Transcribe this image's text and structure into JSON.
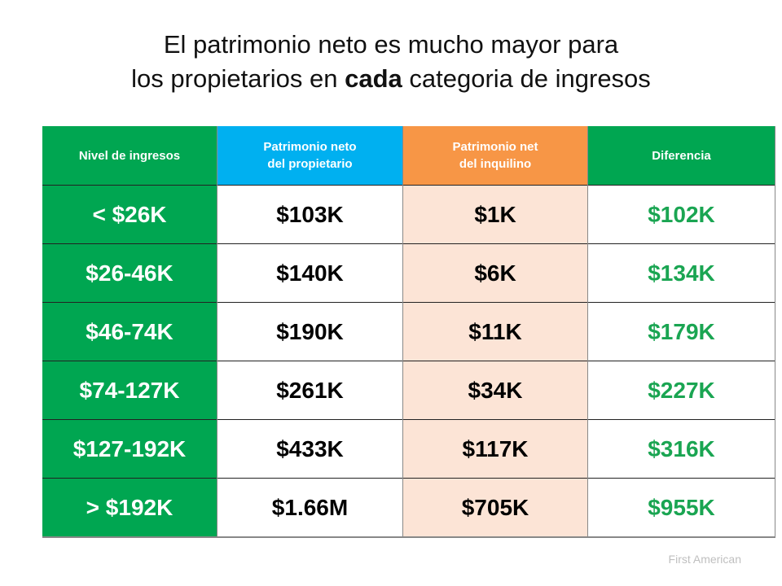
{
  "title": {
    "line1": "El patrimonio neto es mucho mayor para",
    "line2_pre": "los propietarios en ",
    "line2_bold": "cada",
    "line2_post": " categoria de ingresos"
  },
  "table": {
    "headers": [
      "Nivel de ingresos",
      "Patrimonio neto del propietario",
      "Patrimonio net del inquilino",
      "Diferencia"
    ],
    "header_lines": [
      [
        "Nivel de ingresos"
      ],
      [
        "Patrimonio neto",
        "del propietario"
      ],
      [
        "Patrimonio net",
        "del inquilino"
      ],
      [
        "Diferencia"
      ]
    ],
    "rows": [
      [
        "< $26K",
        "$103K",
        "$1K",
        "$102K"
      ],
      [
        "$26-46K",
        "$140K",
        "$6K",
        "$134K"
      ],
      [
        "$46-74K",
        "$190K",
        "$11K",
        "$179K"
      ],
      [
        "$74-127K",
        "$261K",
        "$34K",
        "$227K"
      ],
      [
        "$127-192K",
        "$433K",
        "$117K",
        "$316K"
      ],
      [
        "> $192K",
        "$1.66M",
        "$705K",
        "$955K"
      ]
    ]
  },
  "source": "First American",
  "colors": {
    "green": "#00a651",
    "blue": "#00b0f0",
    "orange": "#f79646",
    "peach": "#fce4d6",
    "difference_text": "#1aa552"
  },
  "chart_data": {
    "type": "table",
    "title": "El patrimonio neto es mucho mayor para los propietarios en cada categoria de ingresos",
    "columns": [
      "Nivel de ingresos",
      "Patrimonio neto del propietario",
      "Patrimonio net del inquilino",
      "Diferencia"
    ],
    "categories": [
      "< $26K",
      "$26-46K",
      "$46-74K",
      "$74-127K",
      "$127-192K",
      "> $192K"
    ],
    "series": [
      {
        "name": "Patrimonio neto del propietario",
        "values": [
          "$103K",
          "$140K",
          "$190K",
          "$261K",
          "$433K",
          "$1.66M"
        ],
        "numeric_thousands": [
          103,
          140,
          190,
          261,
          433,
          1660
        ]
      },
      {
        "name": "Patrimonio net del inquilino",
        "values": [
          "$1K",
          "$6K",
          "$11K",
          "$34K",
          "$117K",
          "$705K"
        ],
        "numeric_thousands": [
          1,
          6,
          11,
          34,
          117,
          705
        ]
      },
      {
        "name": "Diferencia",
        "values": [
          "$102K",
          "$134K",
          "$179K",
          "$227K",
          "$316K",
          "$955K"
        ],
        "numeric_thousands": [
          102,
          134,
          179,
          227,
          316,
          955
        ]
      }
    ],
    "source": "First American"
  }
}
